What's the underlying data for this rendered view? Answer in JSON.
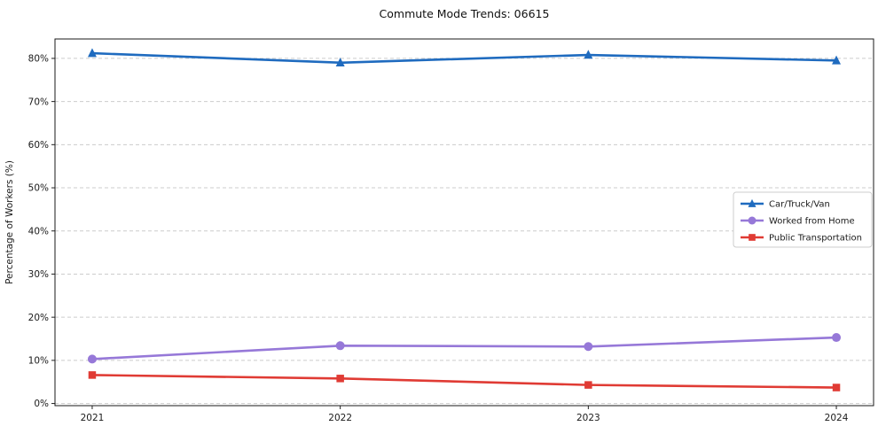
{
  "page": {
    "background_color": "#ffffff"
  },
  "chart_data": {
    "type": "line",
    "title": "Commute Mode Trends: 06615",
    "xlabel": "",
    "ylabel": "Percentage of Workers (%)",
    "x": [
      2021,
      2022,
      2023,
      2024
    ],
    "x_tick_labels": [
      "2021",
      "2022",
      "2023",
      "2024"
    ],
    "y_ticks": [
      0,
      10,
      20,
      30,
      40,
      50,
      60,
      70,
      80
    ],
    "y_tick_suffix": "%",
    "ylim": [
      -0.5,
      84.5
    ],
    "grid": {
      "axis": "y",
      "style": "dashed",
      "color": "#cccccc"
    },
    "legend": {
      "position": "center-right",
      "items": [
        "Car/Truck/Van",
        "Worked from Home",
        "Public Transportation"
      ]
    },
    "series": [
      {
        "name": "Car/Truck/Van",
        "color": "#1f6bbf",
        "marker": "triangle",
        "values": [
          81.2,
          79.0,
          80.8,
          79.5
        ]
      },
      {
        "name": "Worked from Home",
        "color": "#9678d8",
        "marker": "circle",
        "values": [
          10.3,
          13.4,
          13.2,
          15.3
        ]
      },
      {
        "name": "Public Transportation",
        "color": "#e03b34",
        "marker": "square",
        "values": [
          6.6,
          5.8,
          4.3,
          3.7
        ]
      }
    ]
  }
}
